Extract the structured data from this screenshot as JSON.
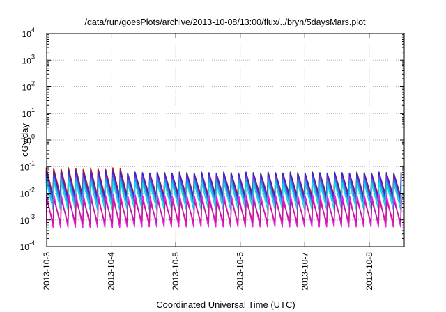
{
  "chart_data": {
    "type": "line",
    "title": "/data/run/goesPlots/archive/2013-10-08/13:00/flux/../bryn/5daysMars.plot",
    "xlabel": "Coordinated Universal Time (UTC)",
    "ylabel": "cGy/day",
    "yscale": "log",
    "ylim": [
      0.0001,
      10000
    ],
    "xlim": [
      "2013-10-03T00:00",
      "2013-10-08T13:00"
    ],
    "x_ticks": [
      "2013-10-3",
      "2013-10-4",
      "2013-10-5",
      "2013-10-6",
      "2013-10-7",
      "2013-10-8"
    ],
    "y_ticks": [
      {
        "base": "10",
        "exp": "-4"
      },
      {
        "base": "10",
        "exp": "-3"
      },
      {
        "base": "10",
        "exp": "-2"
      },
      {
        "base": "10",
        "exp": "-1"
      },
      {
        "base": "10",
        "exp": "0"
      },
      {
        "base": "10",
        "exp": "1"
      },
      {
        "base": "10",
        "exp": "2"
      },
      {
        "base": "10",
        "exp": "3"
      },
      {
        "base": "10",
        "exp": "4"
      }
    ],
    "grid": true,
    "sawtooth_period_hours": 2.75,
    "series": [
      {
        "color": "#d01010",
        "peaks_early": 0.09,
        "peaks_late": 0.062,
        "troughs": 0.0085
      },
      {
        "color": "#1a30d8",
        "peaks_early": 0.07,
        "peaks_late": 0.06,
        "troughs": 0.0065
      },
      {
        "color": "#7a2bd0",
        "peaks_early": 0.05,
        "peaks_late": 0.045,
        "troughs": 0.005
      },
      {
        "color": "#1c9be0",
        "peaks_early": 0.04,
        "peaks_late": 0.035,
        "troughs": 0.004
      },
      {
        "color": "#18d2e8",
        "peaks_early": 0.028,
        "peaks_late": 0.025,
        "troughs": 0.0025
      },
      {
        "color": "#ee1ee8",
        "peaks_early": 0.009,
        "peaks_late": 0.0085,
        "troughs": 0.00055
      },
      {
        "color": "#c41a9a",
        "peaks_early": 0.006,
        "peaks_late": 0.0055,
        "troughs": 0.0008
      }
    ]
  }
}
